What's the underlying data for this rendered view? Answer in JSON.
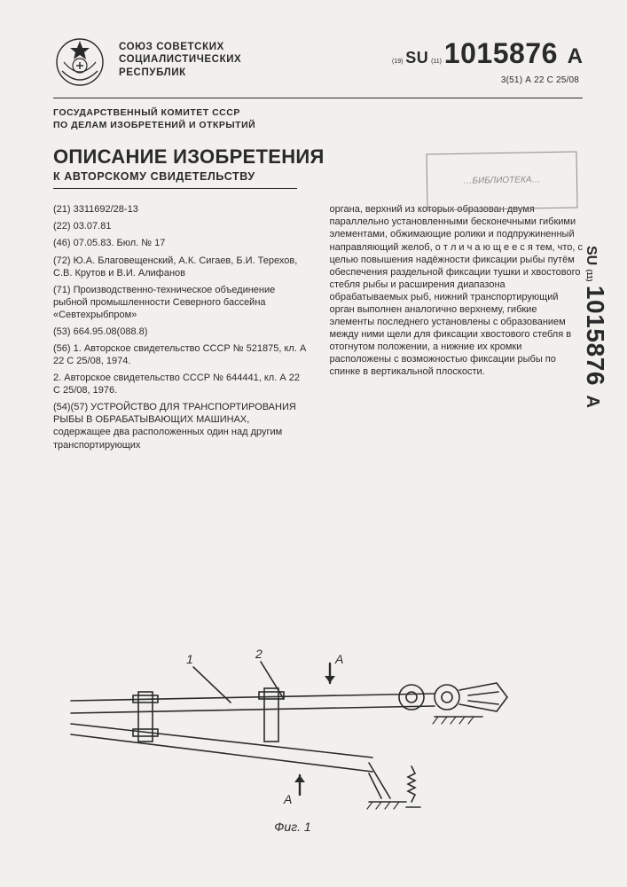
{
  "header": {
    "org": "СОЮЗ СОВЕТСКИХ\nСОЦИАЛИСТИЧЕСКИХ\nРЕСПУБЛИК",
    "committee": "ГОСУДАРСТВЕННЫЙ КОМИТЕТ СССР\nПО ДЕЛАМ ИЗОБРЕТЕНИЙ И ОТКРЫТИЙ",
    "country_code_prefix": "(19)",
    "country_code": "SU",
    "num_prefix": "(11)",
    "number": "1015876",
    "kind": "A",
    "ipc_prefix": "3(51)",
    "ipc": "А 22 С 25/08",
    "stamp_text": "…БИБЛИОТЕКА…"
  },
  "title": {
    "main": "ОПИСАНИЕ ИЗОБРЕТЕНИЯ",
    "sub": "К АВТОРСКОМУ СВИДЕТЕЛЬСТВУ"
  },
  "left_col": {
    "p21": "(21) 3311692/28-13",
    "p22": "(22) 03.07.81",
    "p46": "(46) 07.05.83. Бюл. № 17",
    "p72": "(72) Ю.А. Благовещенский, А.К. Сигаев, Б.И. Терехов, С.В. Крутов и В.И. Алифанов",
    "p71": "(71) Производственно-техническое объединение рыбной промышленности Северного бассейна «Севтехрыбпром»",
    "p53": "(53) 664.95.08(088.8)",
    "p56a": "(56) 1. Авторское свидетельство СССР № 521875, кл. А 22 С 25/08, 1974.",
    "p56b": "2. Авторское свидетельство СССР № 644441, кл. А 22 С 25/08, 1976.",
    "p54": "(54)(57) УСТРОЙСТВО ДЛЯ ТРАНСПОРТИРОВАНИЯ РЫБЫ В ОБРАБАТЫВАЮЩИХ МАШИНАХ, содержащее два расположенных один над другим транспортирующих"
  },
  "right_col": {
    "abstract": "органа, верхний из которых образован двумя параллельно установленными бесконечными гибкими элементами, обжимающие ролики и подпружиненный направляющий желоб, о т л и ч а ю щ е е с я тем, что, с целью повышения надёжности фиксации рыбы путём обеспечения раздельной фиксации тушки и хвостового стебля рыбы и расширения диапазона обрабатываемых рыб, нижний транспортирующий орган выполнен аналогично верхнему, гибкие элементы последнего установлены с образованием между ними щели для фиксации хвостового стебля в отогнутом положении, а нижние их кромки расположены с возможностью фиксации рыбы по спинке в вертикальной плоскости."
  },
  "figure": {
    "label": "Фиг. 1",
    "callouts": [
      "1",
      "2",
      "A",
      "A"
    ],
    "stroke": "#2a2a2a",
    "stroke_width": 1.6
  },
  "spine": {
    "country_code": "SU",
    "num_prefix": "(11)",
    "number": "1015876",
    "kind": "A"
  },
  "colors": {
    "bg": "#f2f0ec",
    "ink": "#2a2a2a",
    "stamp": "#8a8a8a"
  }
}
